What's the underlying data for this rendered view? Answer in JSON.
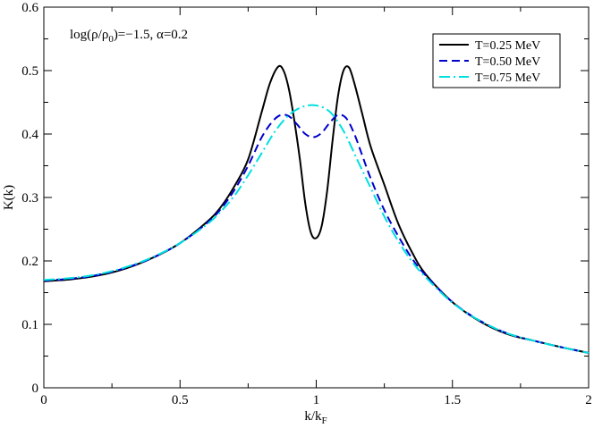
{
  "chart_data": {
    "type": "line",
    "title": "",
    "annotation": {
      "text_log": "log(ρ/ρ",
      "text_sub": "0",
      "text_rest": ")=−1.5, α=0.2"
    },
    "xlabel": {
      "main": "k/k",
      "sub": "F"
    },
    "ylabel": "K(k)",
    "xlim": [
      0,
      2
    ],
    "ylim": [
      0,
      0.6
    ],
    "xticks": [
      0,
      0.5,
      1,
      1.5,
      2
    ],
    "xtick_labels": [
      "0",
      "0.5",
      "1",
      "1.5",
      "2"
    ],
    "yticks": [
      0,
      0.1,
      0.2,
      0.3,
      0.4,
      0.5,
      0.6
    ],
    "ytick_labels": [
      "0",
      "0.1",
      "0.2",
      "0.3",
      "0.4",
      "0.5",
      "0.6"
    ],
    "grid": false,
    "legend_position": "top-right",
    "series": [
      {
        "name": "T=0.25 MeV",
        "color": "#000000",
        "dash": "solid",
        "x": [
          0,
          0.1,
          0.2,
          0.3,
          0.4,
          0.5,
          0.6,
          0.65,
          0.7,
          0.75,
          0.8,
          0.83,
          0.86,
          0.88,
          0.9,
          0.92,
          0.94,
          0.96,
          0.98,
          1.0,
          1.02,
          1.04,
          1.06,
          1.08,
          1.1,
          1.12,
          1.14,
          1.17,
          1.2,
          1.25,
          1.3,
          1.35,
          1.4,
          1.5,
          1.6,
          1.7,
          1.8,
          1.9,
          2.0
        ],
        "y": [
          0.168,
          0.171,
          0.177,
          0.188,
          0.205,
          0.228,
          0.262,
          0.285,
          0.318,
          0.36,
          0.435,
          0.48,
          0.506,
          0.5,
          0.47,
          0.42,
          0.36,
          0.29,
          0.245,
          0.236,
          0.255,
          0.31,
          0.39,
          0.46,
          0.5,
          0.505,
          0.48,
          0.43,
          0.38,
          0.32,
          0.26,
          0.215,
          0.18,
          0.135,
          0.105,
          0.085,
          0.074,
          0.064,
          0.055
        ]
      },
      {
        "name": "T=0.50 MeV",
        "color": "#0000cc",
        "dash": "dashed",
        "x": [
          0,
          0.1,
          0.2,
          0.3,
          0.4,
          0.5,
          0.6,
          0.65,
          0.7,
          0.75,
          0.8,
          0.84,
          0.87,
          0.9,
          0.93,
          0.96,
          0.99,
          1.02,
          1.05,
          1.08,
          1.11,
          1.14,
          1.17,
          1.2,
          1.25,
          1.3,
          1.35,
          1.4,
          1.5,
          1.6,
          1.7,
          1.8,
          1.9,
          2.0
        ],
        "y": [
          0.169,
          0.172,
          0.178,
          0.189,
          0.205,
          0.228,
          0.26,
          0.282,
          0.312,
          0.35,
          0.395,
          0.42,
          0.43,
          0.428,
          0.415,
          0.4,
          0.395,
          0.402,
          0.418,
          0.43,
          0.425,
          0.4,
          0.365,
          0.33,
          0.28,
          0.24,
          0.205,
          0.178,
          0.135,
          0.106,
          0.086,
          0.074,
          0.064,
          0.055
        ]
      },
      {
        "name": "T=0.75 MeV",
        "color": "#00e0e0",
        "dash": "dashdot",
        "x": [
          0,
          0.1,
          0.2,
          0.3,
          0.4,
          0.5,
          0.6,
          0.65,
          0.7,
          0.75,
          0.8,
          0.85,
          0.9,
          0.95,
          1.0,
          1.05,
          1.1,
          1.15,
          1.2,
          1.25,
          1.3,
          1.35,
          1.4,
          1.5,
          1.6,
          1.7,
          1.8,
          1.9,
          2.0
        ],
        "y": [
          0.17,
          0.173,
          0.179,
          0.19,
          0.206,
          0.228,
          0.258,
          0.278,
          0.303,
          0.335,
          0.37,
          0.405,
          0.43,
          0.443,
          0.445,
          0.435,
          0.405,
          0.36,
          0.315,
          0.27,
          0.232,
          0.2,
          0.175,
          0.134,
          0.106,
          0.086,
          0.074,
          0.064,
          0.055
        ]
      }
    ]
  }
}
